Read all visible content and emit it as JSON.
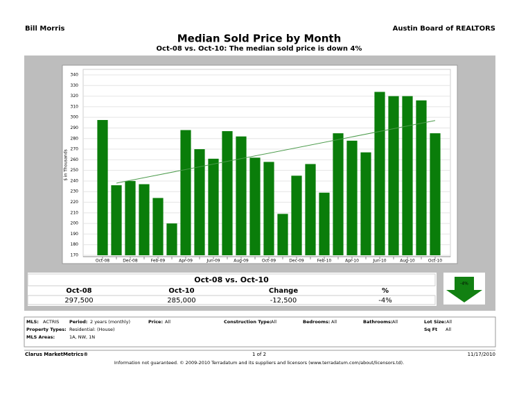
{
  "header": {
    "left": "Bill Morris",
    "right": "Austin Board of REALTORS",
    "title": "Median Sold Price by Month",
    "subtitle": "Oct-08 vs. Oct-10:  The median sold price is down 4%"
  },
  "chart_data": {
    "type": "bar",
    "y_label": "$ in Thousands",
    "categories": [
      "Oct-08",
      null,
      "Dec-08",
      null,
      "Feb-09",
      null,
      "Apr-09",
      null,
      "Jun-09",
      null,
      "Aug-09",
      null,
      "Oct-09",
      null,
      "Dec-09",
      null,
      "Feb-10",
      null,
      "Apr-10",
      null,
      "Jun-10",
      null,
      "Aug-10",
      null,
      "Oct-10"
    ],
    "values": [
      297.5,
      236,
      240,
      237,
      224,
      200,
      288,
      270,
      261,
      287,
      282,
      262,
      258,
      209,
      245,
      256,
      229,
      285,
      278,
      267,
      324,
      320,
      320,
      316,
      285
    ],
    "color": "#0a7d0a",
    "trend": [
      238,
      297
    ],
    "trend_color": "#4a9a4a",
    "ylim": [
      170,
      340
    ],
    "yticks": [
      170,
      180,
      190,
      200,
      210,
      220,
      230,
      240,
      250,
      260,
      270,
      280,
      290,
      300,
      310,
      320,
      330,
      340
    ],
    "grid": true
  },
  "summary": {
    "title": "Oct-08 vs. Oct-10",
    "headers": [
      "Oct-08",
      "Oct-10",
      "Change",
      "%"
    ],
    "values": [
      "297,500",
      "285,000",
      "-12,500",
      "-4%"
    ],
    "badge": "-4%"
  },
  "criteria": [
    [
      {
        "label": "MLS:",
        "value": "ACTRIS"
      },
      {
        "label": "Period:",
        "value": "2 years (monthly)"
      },
      {
        "label": "Price:",
        "value": "All"
      },
      {
        "label": "Construction Type:",
        "value": "All"
      },
      {
        "label": "Bedrooms:",
        "value": "All"
      },
      {
        "label": "Bathrooms:",
        "value": "All"
      },
      {
        "label": "Lot Size:",
        "value": "All"
      }
    ],
    [
      {
        "label": "Property Types:",
        "value": "Residential: (House)"
      },
      {
        "label": "Sq Ft",
        "value": "All"
      }
    ],
    [
      {
        "label": "MLS Areas:",
        "value": "1A, NW, 1N"
      }
    ]
  ],
  "footer": {
    "brand": "Clarus MarketMetrics®",
    "page": "1 of 2",
    "date": "11/17/2010",
    "disclaimer": "Information not guaranteed.  © 2009-2010 Terradatum and its suppliers and licensors (www.terradatum.com/about/licensors.td)."
  }
}
